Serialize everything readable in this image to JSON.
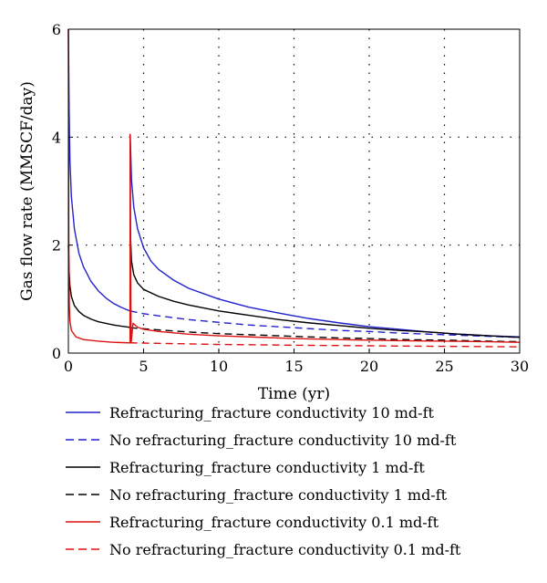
{
  "chart_data": {
    "type": "line",
    "title": "",
    "xlabel": "Time (yr)",
    "ylabel": "Gas flow rate (MMSCF/day)",
    "xlim": [
      0,
      30
    ],
    "ylim": [
      0,
      6
    ],
    "x_ticks": [
      0,
      5,
      10,
      15,
      20,
      25,
      30
    ],
    "y_ticks": [
      0,
      2,
      4,
      6
    ],
    "x_tick_labels": [
      "0",
      "5",
      "10",
      "15",
      "20",
      "25",
      "30"
    ],
    "y_tick_labels": [
      "0",
      "2",
      "4",
      "6"
    ],
    "grid": "dotted",
    "legend_position": "below",
    "series": [
      {
        "name": "Refracturing_fracture conductivity 10 md-ft",
        "color": "#2222cc",
        "style": "solid",
        "points": [
          [
            0,
            6.0
          ],
          [
            0.05,
            4.5
          ],
          [
            0.1,
            3.6
          ],
          [
            0.2,
            2.9
          ],
          [
            0.4,
            2.3
          ],
          [
            0.7,
            1.85
          ],
          [
            1,
            1.6
          ],
          [
            1.5,
            1.33
          ],
          [
            2,
            1.15
          ],
          [
            2.5,
            1.02
          ],
          [
            3,
            0.92
          ],
          [
            3.5,
            0.85
          ],
          [
            4,
            0.79
          ],
          [
            4.1,
            0.78
          ],
          [
            4.11,
            4.05
          ],
          [
            4.2,
            3.2
          ],
          [
            4.35,
            2.7
          ],
          [
            4.6,
            2.3
          ],
          [
            5,
            1.95
          ],
          [
            5.5,
            1.7
          ],
          [
            6,
            1.55
          ],
          [
            7,
            1.35
          ],
          [
            8,
            1.2
          ],
          [
            9,
            1.1
          ],
          [
            10,
            1.0
          ],
          [
            12,
            0.85
          ],
          [
            14,
            0.74
          ],
          [
            16,
            0.64
          ],
          [
            18,
            0.56
          ],
          [
            20,
            0.49
          ],
          [
            22,
            0.44
          ],
          [
            24,
            0.39
          ],
          [
            26,
            0.35
          ],
          [
            28,
            0.32
          ],
          [
            30,
            0.3
          ]
        ]
      },
      {
        "name": "No refracturing_fracture conductivity 10 md-ft",
        "color": "#2222cc",
        "style": "dashed",
        "points": [
          [
            4.1,
            0.78
          ],
          [
            5,
            0.73
          ],
          [
            6,
            0.69
          ],
          [
            8,
            0.62
          ],
          [
            10,
            0.57
          ],
          [
            12,
            0.52
          ],
          [
            15,
            0.47
          ],
          [
            18,
            0.42
          ],
          [
            20,
            0.4
          ],
          [
            22,
            0.37
          ],
          [
            25,
            0.34
          ],
          [
            28,
            0.31
          ],
          [
            30,
            0.29
          ]
        ]
      },
      {
        "name": "Refracturing_fracture conductivity 1 md-ft",
        "color": "#000000",
        "style": "solid",
        "points": [
          [
            0,
            2.0
          ],
          [
            0.05,
            1.5
          ],
          [
            0.1,
            1.25
          ],
          [
            0.2,
            1.05
          ],
          [
            0.4,
            0.88
          ],
          [
            0.7,
            0.77
          ],
          [
            1,
            0.7
          ],
          [
            1.5,
            0.63
          ],
          [
            2,
            0.58
          ],
          [
            2.5,
            0.55
          ],
          [
            3,
            0.52
          ],
          [
            3.5,
            0.5
          ],
          [
            4,
            0.48
          ],
          [
            4.1,
            0.47
          ],
          [
            4.11,
            2.3
          ],
          [
            4.2,
            1.7
          ],
          [
            4.35,
            1.45
          ],
          [
            4.6,
            1.3
          ],
          [
            5,
            1.18
          ],
          [
            6,
            1.05
          ],
          [
            7,
            0.96
          ],
          [
            8,
            0.89
          ],
          [
            10,
            0.78
          ],
          [
            12,
            0.7
          ],
          [
            14,
            0.62
          ],
          [
            16,
            0.56
          ],
          [
            18,
            0.51
          ],
          [
            20,
            0.46
          ],
          [
            22,
            0.42
          ],
          [
            24,
            0.39
          ],
          [
            26,
            0.35
          ],
          [
            28,
            0.32
          ],
          [
            30,
            0.29
          ]
        ]
      },
      {
        "name": "No refracturing_fracture conductivity 1 md-ft",
        "color": "#000000",
        "style": "dashed",
        "points": [
          [
            4.1,
            0.47
          ],
          [
            5,
            0.45
          ],
          [
            6,
            0.43
          ],
          [
            8,
            0.39
          ],
          [
            10,
            0.36
          ],
          [
            12,
            0.34
          ],
          [
            15,
            0.31
          ],
          [
            18,
            0.28
          ],
          [
            20,
            0.27
          ],
          [
            22,
            0.25
          ],
          [
            25,
            0.24
          ],
          [
            28,
            0.22
          ],
          [
            30,
            0.21
          ]
        ]
      },
      {
        "name": "Refracturing_fracture conductivity 0.1 md-ft",
        "color": "#dd1111",
        "style": "solid",
        "points": [
          [
            0,
            6.0
          ],
          [
            0.03,
            2.0
          ],
          [
            0.06,
            0.9
          ],
          [
            0.1,
            0.6
          ],
          [
            0.2,
            0.42
          ],
          [
            0.5,
            0.3
          ],
          [
            1,
            0.25
          ],
          [
            2,
            0.22
          ],
          [
            3,
            0.2
          ],
          [
            4,
            0.19
          ],
          [
            4.1,
            0.19
          ],
          [
            4.11,
            4.05
          ],
          [
            4.17,
            0.19
          ],
          [
            4.3,
            0.55
          ],
          [
            4.6,
            0.48
          ],
          [
            5,
            0.44
          ],
          [
            6,
            0.4
          ],
          [
            8,
            0.35
          ],
          [
            10,
            0.32
          ],
          [
            12,
            0.3
          ],
          [
            15,
            0.27
          ],
          [
            18,
            0.25
          ],
          [
            20,
            0.24
          ],
          [
            22,
            0.23
          ],
          [
            25,
            0.22
          ],
          [
            28,
            0.21
          ],
          [
            30,
            0.2
          ]
        ]
      },
      {
        "name": "No refracturing_fracture conductivity 0.1 md-ft",
        "color": "#dd1111",
        "style": "dashed",
        "points": [
          [
            4.1,
            0.19
          ],
          [
            6,
            0.18
          ],
          [
            8,
            0.17
          ],
          [
            10,
            0.16
          ],
          [
            12,
            0.155
          ],
          [
            15,
            0.145
          ],
          [
            18,
            0.14
          ],
          [
            20,
            0.135
          ],
          [
            22,
            0.13
          ],
          [
            25,
            0.125
          ],
          [
            28,
            0.12
          ],
          [
            30,
            0.115
          ]
        ]
      }
    ]
  }
}
